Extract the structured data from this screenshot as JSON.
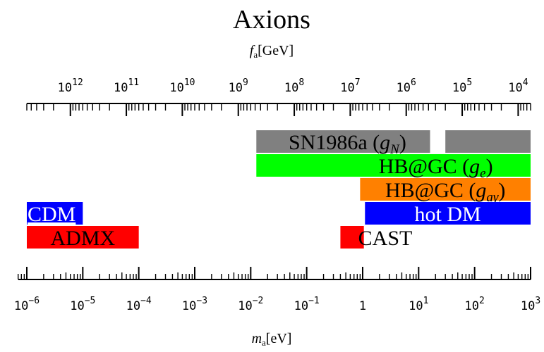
{
  "chart_data": {
    "type": "range-bar",
    "title": "Axions",
    "top_axis": {
      "label": "f_a[GeV]",
      "label_base": "f",
      "label_sub": "a",
      "label_unit": "[GeV]",
      "ticks": [
        {
          "base": "10",
          "exp": "12",
          "value": 1000000000000.0
        },
        {
          "base": "10",
          "exp": "11",
          "value": 100000000000.0
        },
        {
          "base": "10",
          "exp": "10",
          "value": 10000000000.0
        },
        {
          "base": "10",
          "exp": "9",
          "value": 1000000000.0
        },
        {
          "base": "10",
          "exp": "8",
          "value": 100000000.0
        },
        {
          "base": "10",
          "exp": "7",
          "value": 10000000.0
        },
        {
          "base": "10",
          "exp": "6",
          "value": 1000000.0
        },
        {
          "base": "10",
          "exp": "5",
          "value": 100000.0
        },
        {
          "base": "10",
          "exp": "4",
          "value": 10000.0
        }
      ],
      "scale": "log",
      "range": [
        3000000000000.0,
        5000.0
      ]
    },
    "bottom_axis": {
      "label": "m_a[eV]",
      "label_base": "m",
      "label_sub": "a",
      "label_unit": "[eV]",
      "ticks": [
        {
          "base": "10",
          "exp": "−6",
          "value": 1e-06
        },
        {
          "base": "10",
          "exp": "−5",
          "value": 1e-05
        },
        {
          "base": "10",
          "exp": "−4",
          "value": 0.0001
        },
        {
          "base": "10",
          "exp": "−3",
          "value": 0.001
        },
        {
          "base": "10",
          "exp": "−2",
          "value": 0.01
        },
        {
          "base": "10",
          "exp": "−1",
          "value": 0.1
        },
        {
          "base": "1",
          "exp": "",
          "value": 1
        },
        {
          "base": "10",
          "exp": "1",
          "value": 10
        },
        {
          "base": "10",
          "exp": "2",
          "value": 100
        },
        {
          "base": "10",
          "exp": "3",
          "value": 1000
        }
      ],
      "scale": "log",
      "range": [
        1e-06,
        1000.0
      ]
    },
    "bars": [
      {
        "label": "SN1986a (g_N)",
        "label_main": "SN1986a (",
        "label_italic": "g",
        "label_sub": "N",
        "label_end": ")",
        "color": "#808080",
        "row": 0,
        "segments": [
          [
            0.0126,
            16
          ],
          [
            30,
            1000
          ]
        ]
      },
      {
        "label": "HB@GC (g_e)",
        "label_main": "HB@GC (",
        "label_italic": "g",
        "label_sub": "e",
        "label_end": ")",
        "color": "#00ff00",
        "row": 1,
        "segments": [
          [
            0.0126,
            1000
          ]
        ]
      },
      {
        "label": "HB@GC (g_aγ)",
        "label_main": "HB@GC (",
        "label_italic": "g",
        "label_sub": "aγ",
        "label_end": ")",
        "color": "#ff8000",
        "row": 2,
        "segments": [
          [
            0.9,
            1000
          ]
        ]
      },
      {
        "label": "CDM",
        "label_main": "CDM",
        "color": "#0000ff",
        "row": 3,
        "segments": [
          [
            1e-06,
            1e-05
          ]
        ],
        "underline": true
      },
      {
        "label": "hot DM",
        "label_main": "hot DM",
        "color": "#0000ff",
        "row": 3,
        "segments": [
          [
            1.1,
            1000
          ]
        ]
      },
      {
        "label": "ADMX",
        "label_main": "ADMX",
        "color": "#ff0000",
        "row": 4,
        "segments": [
          [
            1e-06,
            0.0001
          ]
        ]
      },
      {
        "label": "CAST",
        "label_main": "CAST",
        "color": "#ff0000",
        "row": 4,
        "segments": [
          [
            0.4,
            1.05
          ]
        ]
      }
    ]
  }
}
